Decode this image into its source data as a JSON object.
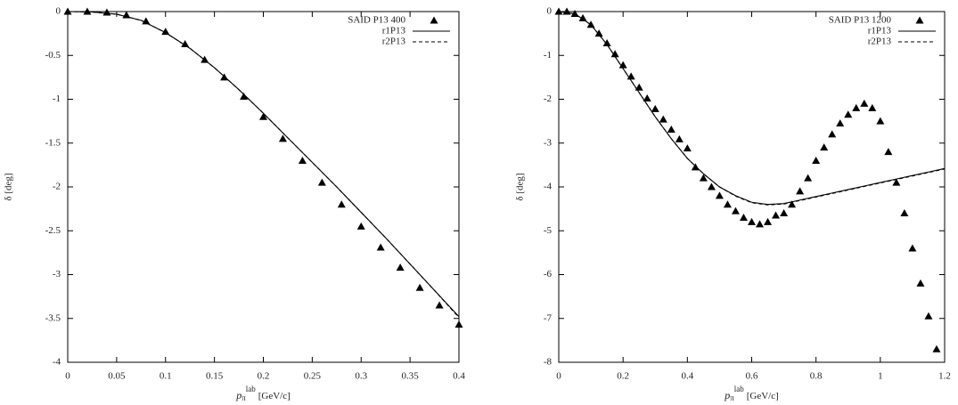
{
  "chart_data": [
    {
      "type": "line",
      "x_label": "p",
      "x_label_sub": "π",
      "x_label_sup": "lab",
      "x_label_unit": "[GeV/c]",
      "y_label": "δ [deg]",
      "xlim": [
        0,
        0.4
      ],
      "ylim": [
        -4,
        0
      ],
      "xticks": [
        0,
        0.05,
        0.1,
        0.15,
        0.2,
        0.25,
        0.3,
        0.35,
        0.4
      ],
      "yticks": [
        0,
        -0.5,
        -1,
        -1.5,
        -2,
        -2.5,
        -3,
        -3.5,
        -4
      ],
      "legend": "upper right",
      "series": [
        {
          "name": "SAID P13 400",
          "mode": "markers",
          "color": "#000000",
          "x": [
            0,
            0.02,
            0.04,
            0.06,
            0.08,
            0.1,
            0.12,
            0.14,
            0.16,
            0.18,
            0.2,
            0.22,
            0.24,
            0.26,
            0.28,
            0.3,
            0.32,
            0.34,
            0.36,
            0.38,
            0.4
          ],
          "values": [
            0,
            0,
            -0.01,
            -0.04,
            -0.11,
            -0.23,
            -0.37,
            -0.55,
            -0.75,
            -0.97,
            -1.2,
            -1.45,
            -1.7,
            -1.95,
            -2.2,
            -2.45,
            -2.69,
            -2.92,
            -3.15,
            -3.35,
            -3.57
          ]
        },
        {
          "name": "r1P13",
          "mode": "lines",
          "dash": "solid",
          "color": "#000000",
          "x": [
            0,
            0.025,
            0.05,
            0.075,
            0.1,
            0.125,
            0.15,
            0.175,
            0.2,
            0.225,
            0.25,
            0.275,
            0.3,
            0.325,
            0.35,
            0.375,
            0.4
          ],
          "values": [
            0,
            -0.005,
            -0.03,
            -0.1,
            -0.24,
            -0.42,
            -0.64,
            -0.89,
            -1.16,
            -1.44,
            -1.72,
            -2.0,
            -2.29,
            -2.58,
            -2.88,
            -3.18,
            -3.48
          ]
        },
        {
          "name": "r2P13",
          "mode": "lines",
          "dash": "dashed",
          "color": "#000000",
          "x": [
            0,
            0.025,
            0.05,
            0.075,
            0.1,
            0.125,
            0.15,
            0.175,
            0.2,
            0.225,
            0.25,
            0.275,
            0.3,
            0.325,
            0.35,
            0.375,
            0.4
          ],
          "values": [
            0,
            -0.005,
            -0.03,
            -0.1,
            -0.24,
            -0.42,
            -0.64,
            -0.89,
            -1.16,
            -1.44,
            -1.72,
            -2.0,
            -2.29,
            -2.58,
            -2.88,
            -3.18,
            -3.49
          ]
        }
      ]
    },
    {
      "type": "line",
      "x_label": "p",
      "x_label_sub": "π",
      "x_label_sup": "lab",
      "x_label_unit": "[GeV/c]",
      "y_label": "δ [deg]",
      "xlim": [
        0,
        1.2
      ],
      "ylim": [
        -8,
        0
      ],
      "xticks": [
        0,
        0.2,
        0.4,
        0.6,
        0.8,
        1,
        1.2
      ],
      "yticks": [
        0,
        -1,
        -2,
        -3,
        -4,
        -5,
        -6,
        -7,
        -8
      ],
      "legend": "upper right",
      "series": [
        {
          "name": "SAID P13 1200",
          "mode": "markers",
          "color": "#000000",
          "x": [
            0,
            0.025,
            0.05,
            0.075,
            0.1,
            0.125,
            0.15,
            0.175,
            0.2,
            0.225,
            0.25,
            0.275,
            0.3,
            0.325,
            0.35,
            0.375,
            0.4,
            0.425,
            0.45,
            0.475,
            0.5,
            0.525,
            0.55,
            0.575,
            0.6,
            0.625,
            0.65,
            0.675,
            0.7,
            0.725,
            0.75,
            0.775,
            0.8,
            0.825,
            0.85,
            0.875,
            0.9,
            0.925,
            0.95,
            0.975,
            1.0,
            1.025,
            1.05,
            1.075,
            1.1,
            1.125,
            1.15,
            1.175
          ],
          "values": [
            0,
            0,
            -0.05,
            -0.15,
            -0.3,
            -0.5,
            -0.72,
            -0.97,
            -1.22,
            -1.48,
            -1.73,
            -1.98,
            -2.22,
            -2.46,
            -2.69,
            -2.91,
            -3.12,
            -3.55,
            -3.8,
            -4.0,
            -4.2,
            -4.4,
            -4.55,
            -4.7,
            -4.8,
            -4.85,
            -4.8,
            -4.65,
            -4.6,
            -4.4,
            -4.1,
            -3.8,
            -3.4,
            -3.1,
            -2.8,
            -2.55,
            -2.35,
            -2.2,
            -2.1,
            -2.2,
            -2.5,
            -3.2,
            -3.9,
            -4.6,
            -5.4,
            -6.2,
            -6.95,
            -7.7
          ]
        },
        {
          "name": "r1P13",
          "mode": "lines",
          "dash": "solid",
          "color": "#000000",
          "x": [
            0,
            0.05,
            0.1,
            0.15,
            0.2,
            0.25,
            0.3,
            0.35,
            0.4,
            0.45,
            0.5,
            0.55,
            0.6,
            0.65,
            0.7,
            0.75,
            0.8,
            0.85,
            0.9,
            0.95,
            1.0,
            1.05,
            1.1,
            1.15,
            1.2
          ],
          "values": [
            0,
            -0.05,
            -0.3,
            -0.75,
            -1.3,
            -1.85,
            -2.4,
            -2.9,
            -3.35,
            -3.7,
            -4.0,
            -4.2,
            -4.35,
            -4.4,
            -4.38,
            -4.3,
            -4.22,
            -4.14,
            -4.06,
            -3.98,
            -3.9,
            -3.82,
            -3.74,
            -3.66,
            -3.58
          ]
        },
        {
          "name": "r2P13",
          "mode": "lines",
          "dash": "dashed",
          "color": "#000000",
          "x": [
            0,
            0.05,
            0.1,
            0.15,
            0.2,
            0.25,
            0.3,
            0.35,
            0.4,
            0.45,
            0.5,
            0.55,
            0.6,
            0.65,
            0.7,
            0.75,
            0.8,
            0.85,
            0.9,
            0.95,
            1.0,
            1.05,
            1.1,
            1.15,
            1.2
          ],
          "values": [
            0,
            -0.05,
            -0.3,
            -0.75,
            -1.3,
            -1.85,
            -2.4,
            -2.9,
            -3.35,
            -3.7,
            -4.0,
            -4.21,
            -4.36,
            -4.41,
            -4.39,
            -4.31,
            -4.23,
            -4.15,
            -4.07,
            -3.99,
            -3.91,
            -3.83,
            -3.75,
            -3.67,
            -3.59
          ]
        }
      ]
    }
  ]
}
